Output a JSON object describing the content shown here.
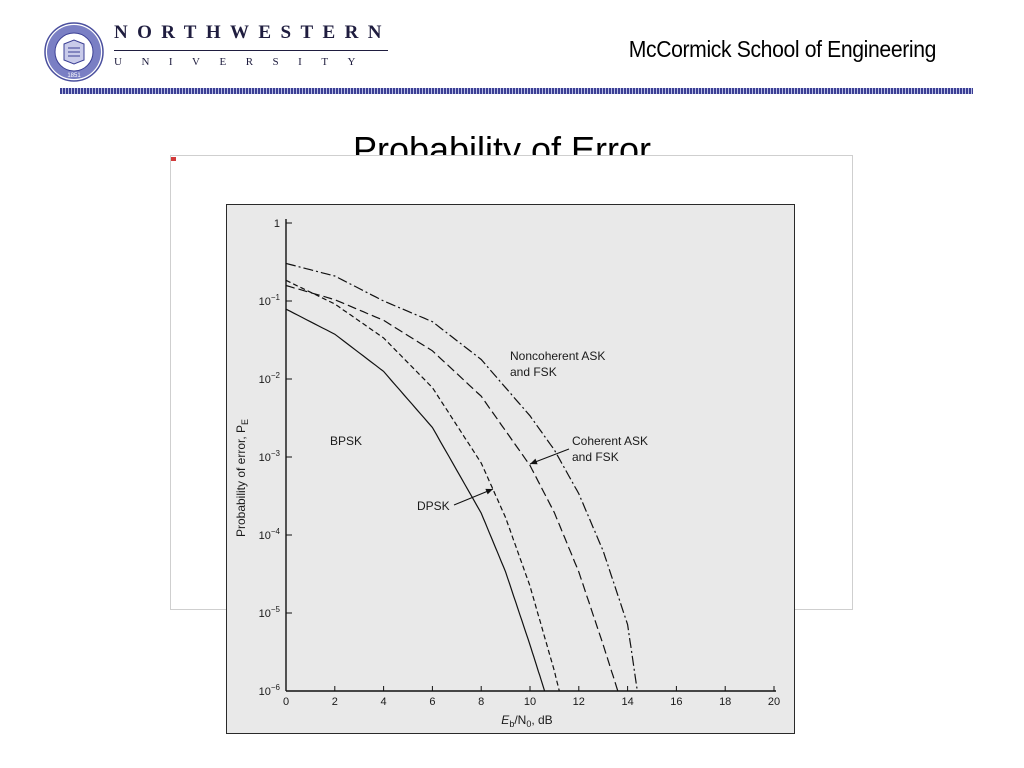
{
  "header": {
    "wordmark_top": "NORTHWESTERN",
    "wordmark_bottom": "UNIVERSITY",
    "seal_year": "1851",
    "school_name": "McCormick School of Engineering",
    "brand_color": "#3b3f94"
  },
  "slide": {
    "title": "Probability of Error"
  },
  "chart_data": {
    "type": "line",
    "title": "",
    "xlabel_main": "E",
    "xlabel_sub1": "b",
    "xlabel_mid": "/N",
    "xlabel_sub2": "0",
    "xlabel_tail": ", dB",
    "ylabel_main": "Probability of error, P",
    "ylabel_sub": "E",
    "xlim": [
      0,
      20
    ],
    "ylim_log10": [
      -6,
      0
    ],
    "yscale": "log",
    "grid": false,
    "x_ticks": [
      "0",
      "2",
      "4",
      "6",
      "8",
      "10",
      "12",
      "14",
      "16",
      "18",
      "20"
    ],
    "y_ticks": [
      {
        "base": "1",
        "exp": ""
      },
      {
        "base": "10",
        "exp": "−1"
      },
      {
        "base": "10",
        "exp": "−2"
      },
      {
        "base": "10",
        "exp": "−3"
      },
      {
        "base": "10",
        "exp": "−4"
      },
      {
        "base": "10",
        "exp": "−5"
      },
      {
        "base": "10",
        "exp": "−6"
      }
    ],
    "series": [
      {
        "name": "BPSK",
        "style": "solid",
        "points": [
          [
            0,
            0.0786
          ],
          [
            2,
            0.0375
          ],
          [
            4,
            0.0125
          ],
          [
            6,
            0.00239
          ],
          [
            8,
            0.000191
          ],
          [
            9,
            3.36e-05
          ],
          [
            10,
            3.9e-06
          ],
          [
            10.6,
            1e-06
          ]
        ]
      },
      {
        "name": "DPSK",
        "style": "short-dash",
        "points": [
          [
            0,
            0.184
          ],
          [
            2,
            0.0915
          ],
          [
            4,
            0.0336
          ],
          [
            6,
            0.00776
          ],
          [
            8,
            0.000838
          ],
          [
            9,
            0.000167
          ],
          [
            10,
            2.21e-05
          ],
          [
            11,
            1.8e-06
          ],
          [
            11.2,
            1e-06
          ]
        ]
      },
      {
        "name": "Coherent ASK and FSK",
        "style": "long-dash",
        "points": [
          [
            0,
            0.158
          ],
          [
            2,
            0.104
          ],
          [
            4,
            0.0565
          ],
          [
            6,
            0.023
          ],
          [
            8,
            0.00601
          ],
          [
            10,
            0.00078
          ],
          [
            11,
            0.000193
          ],
          [
            12,
            3.36e-05
          ],
          [
            13,
            3.9e-06
          ],
          [
            13.6,
            1e-06
          ]
        ]
      },
      {
        "name": "Noncoherent ASK and FSK",
        "style": "dash-dot",
        "points": [
          [
            0,
            0.303
          ],
          [
            2,
            0.209
          ],
          [
            4,
            0.1
          ],
          [
            6,
            0.0543
          ],
          [
            8,
            0.0178
          ],
          [
            10,
            0.00337
          ],
          [
            11,
            0.00123
          ],
          [
            12,
            0.000338
          ],
          [
            13,
            6.23e-05
          ],
          [
            14,
            7.1e-06
          ],
          [
            14.4,
            1e-06
          ]
        ]
      }
    ],
    "annotations": {
      "bpsk": "BPSK",
      "dpsk": "DPSK",
      "coherent_line1": "Coherent ASK",
      "coherent_line2": "and FSK",
      "noncoherent_line1": "Noncoherent ASK",
      "noncoherent_line2": "and FSK"
    }
  }
}
